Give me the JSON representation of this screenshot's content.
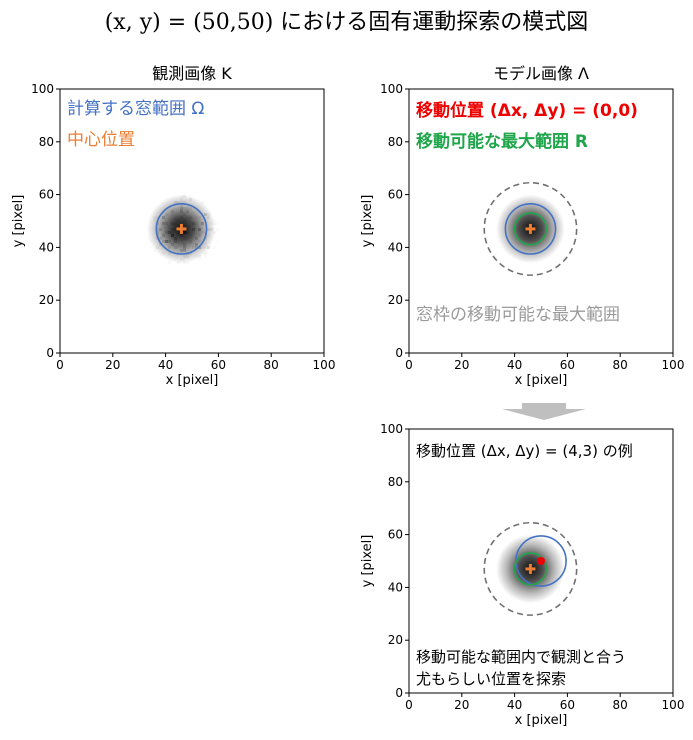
{
  "main_title": "(x, y) = (50,50) における固有運動探索の模式図",
  "panel_titles": {
    "observed": "観測画像 K",
    "model": "モデル画像 Λ"
  },
  "axes": {
    "xlabel": "x [pixel]",
    "ylabel": "y [pixel]",
    "ticks": [
      0,
      20,
      40,
      60,
      80,
      100
    ]
  },
  "observed_panel": {
    "legend_window": "計算する窓範囲 Ω",
    "legend_center": "中心位置"
  },
  "model_panel": {
    "legend_shift": "移動位置 (Δx, Δy) = (0,0)",
    "legend_range": "移動可能な最大範囲 R",
    "max_window_note": "窓枠の移動可能な最大範囲"
  },
  "example_panel": {
    "header": "移動位置 (Δx, Δy) = (4,3) の例",
    "note_line1": "移動可能な範囲内で観測と合う",
    "note_line2": "尤もらしい位置を探索"
  },
  "colors": {
    "window": "#4472c4",
    "center": "#ed7d31",
    "shift": "#ee0000",
    "range": "#1fa64a",
    "max_range": "#707070",
    "note_gray": "#9a9a9a",
    "arrow": "#bfbfbf"
  },
  "chart_data": [
    {
      "type": "scatter",
      "title": "観測画像 K",
      "xlabel": "x [pixel]",
      "ylabel": "y [pixel]",
      "xlim": [
        0,
        100
      ],
      "ylim": [
        0,
        100
      ],
      "source_center": [
        46,
        47
      ],
      "window_center": [
        46,
        47
      ],
      "window_radius": 9.5,
      "marker_center": [
        46,
        47
      ]
    },
    {
      "type": "scatter",
      "title": "モデル画像 Λ",
      "xlabel": "x [pixel]",
      "ylabel": "y [pixel]",
      "xlim": [
        0,
        100
      ],
      "ylim": [
        0,
        100
      ],
      "source_center": [
        46,
        47
      ],
      "window_center": [
        46,
        47
      ],
      "window_radius": 9.5,
      "range_center": [
        46,
        47
      ],
      "range_radius": 6,
      "max_window_center": [
        46,
        47
      ],
      "max_window_radius": 17.5,
      "marker_center": [
        46,
        47
      ]
    },
    {
      "type": "scatter",
      "title": "",
      "xlabel": "x [pixel]",
      "ylabel": "y [pixel]",
      "xlim": [
        0,
        100
      ],
      "ylim": [
        0,
        100
      ],
      "source_center": [
        46,
        47
      ],
      "window_center": [
        50,
        50
      ],
      "window_radius": 9.5,
      "range_center": [
        46,
        47
      ],
      "range_radius": 6,
      "max_window_center": [
        46,
        47
      ],
      "max_window_radius": 17.5,
      "marker_center": [
        46,
        47
      ],
      "shift_point": [
        50,
        50
      ]
    }
  ]
}
